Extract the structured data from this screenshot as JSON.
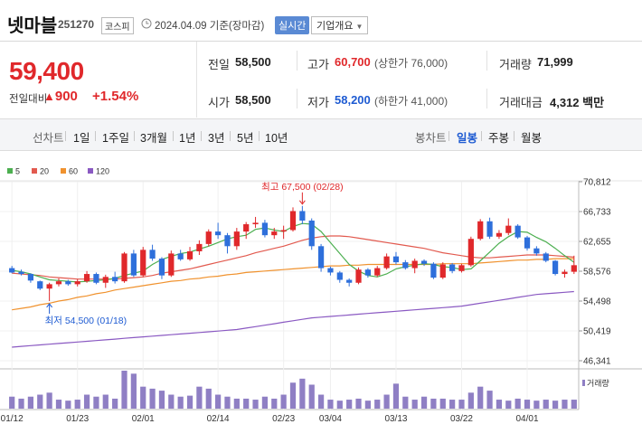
{
  "header": {
    "stock_name": "넷마블",
    "stock_code": "251270",
    "market": "코스피",
    "date_text": "2024.04.09 기준(장마감)",
    "realtime_label": "실시간",
    "company_info_label": "기업개요"
  },
  "quote": {
    "price": "59,400",
    "change_label": "전일대비",
    "change": "900",
    "change_pct": "+1.54%",
    "prev_close_label": "전일",
    "prev_close": "58,500",
    "open_label": "시가",
    "open": "58,500",
    "high_label": "고가",
    "high": "60,700",
    "upper_limit": "(상한가 76,000)",
    "low_label": "저가",
    "low": "58,200",
    "lower_limit": "(하한가 41,000)",
    "volume_label": "거래량",
    "volume": "71,999",
    "amount_label": "거래대금",
    "amount": "4,312 백만"
  },
  "toolbar": {
    "line_chart_label": "선차트",
    "ranges": [
      "1일",
      "1주일",
      "3개월",
      "1년",
      "3년",
      "5년",
      "10년"
    ],
    "candle_chart_label": "봉차트",
    "periods": [
      "일봉",
      "주봉",
      "월봉"
    ],
    "selected_period": "일봉"
  },
  "colors": {
    "up": "#e0282b",
    "down": "#2e6fdb",
    "ma5": "#4caf50",
    "ma20": "#e25a4f",
    "ma60": "#f0922e",
    "ma120": "#8a59c2",
    "volume": "#8f7fc4"
  },
  "chart_data": {
    "type": "candlestick",
    "legend": [
      "5",
      "20",
      "60",
      "120"
    ],
    "ylim": [
      46341,
      70812
    ],
    "y_ticks": [
      "70,812",
      "66,733",
      "62,655",
      "58,576",
      "54,498",
      "50,419",
      "46,341"
    ],
    "x_tick_labels": [
      {
        "label": "01/12",
        "index": 0
      },
      {
        "label": "01/23",
        "index": 7
      },
      {
        "label": "02/01",
        "index": 14
      },
      {
        "label": "02/14",
        "index": 22
      },
      {
        "label": "02/23",
        "index": 29
      },
      {
        "label": "03/04",
        "index": 34
      },
      {
        "label": "03/13",
        "index": 41
      },
      {
        "label": "03/22",
        "index": 48
      },
      {
        "label": "04/01",
        "index": 55
      }
    ],
    "high_annotation": "최고 67,500 (02/28)",
    "high_index": 31,
    "high_value": 67500,
    "low_annotation": "최저 54,500 (01/18)",
    "low_index": 4,
    "low_value": 54500,
    "volume_label": "거래량",
    "candles": [
      [
        59000,
        58400,
        59300,
        58300
      ],
      [
        58500,
        58200,
        58800,
        58000
      ],
      [
        58200,
        57300,
        58300,
        57000
      ],
      [
        57200,
        56200,
        57300,
        56000
      ],
      [
        56200,
        56800,
        57000,
        54500
      ],
      [
        56800,
        57200,
        57600,
        56500
      ],
      [
        57200,
        56800,
        57400,
        56600
      ],
      [
        56800,
        57200,
        57500,
        56500
      ],
      [
        57200,
        58200,
        58600,
        57000
      ],
      [
        58200,
        57000,
        58400,
        56800
      ],
      [
        57000,
        57800,
        58100,
        56300
      ],
      [
        57800,
        57200,
        58500,
        56900
      ],
      [
        57200,
        61000,
        61200,
        57000
      ],
      [
        61000,
        58000,
        61500,
        57800
      ],
      [
        58000,
        61500,
        61900,
        57800
      ],
      [
        61500,
        60300,
        62200,
        60000
      ],
      [
        60300,
        58000,
        60500,
        57500
      ],
      [
        58000,
        61000,
        61400,
        57800
      ],
      [
        61000,
        60200,
        61500,
        60000
      ],
      [
        60200,
        61300,
        61900,
        60000
      ],
      [
        61300,
        62300,
        62800,
        60800
      ],
      [
        62300,
        64000,
        64300,
        62000
      ],
      [
        64000,
        63500,
        65200,
        63000
      ],
      [
        63500,
        62000,
        63800,
        61000
      ],
      [
        62000,
        64000,
        64500,
        61500
      ],
      [
        64000,
        65000,
        65300,
        63000
      ],
      [
        65000,
        65200,
        66000,
        64500
      ],
      [
        65200,
        63500,
        65600,
        63200
      ],
      [
        63500,
        64000,
        64500,
        63000
      ],
      [
        64000,
        64200,
        64800,
        63000
      ],
      [
        64200,
        66800,
        67300,
        64000
      ],
      [
        66800,
        65500,
        67500,
        65000
      ],
      [
        65500,
        62000,
        65800,
        61500
      ],
      [
        62000,
        59000,
        62300,
        58500
      ],
      [
        59000,
        58400,
        59200,
        58000
      ],
      [
        58400,
        57400,
        58600,
        57000
      ],
      [
        57400,
        57000,
        57600,
        56500
      ],
      [
        57000,
        58800,
        59100,
        56800
      ],
      [
        58800,
        58000,
        59000,
        57700
      ],
      [
        58000,
        59000,
        59300,
        57800
      ],
      [
        59000,
        60600,
        61000,
        58800
      ],
      [
        60600,
        59800,
        61200,
        59500
      ],
      [
        59800,
        59000,
        60100,
        58800
      ],
      [
        59000,
        60000,
        60300,
        58300
      ],
      [
        60000,
        59600,
        60200,
        59300
      ],
      [
        59600,
        57700,
        59800,
        57500
      ],
      [
        57700,
        59500,
        59800,
        57500
      ],
      [
        59500,
        58600,
        59700,
        58300
      ],
      [
        58600,
        59400,
        59600,
        58400
      ],
      [
        59400,
        63000,
        63300,
        59200
      ],
      [
        63000,
        65400,
        65700,
        62800
      ],
      [
        65400,
        63300,
        65900,
        63000
      ],
      [
        63300,
        63800,
        64200,
        63000
      ],
      [
        63800,
        64800,
        65800,
        63500
      ],
      [
        64800,
        63200,
        65000,
        63000
      ],
      [
        63200,
        61700,
        63400,
        61400
      ],
      [
        61700,
        61000,
        62000,
        60700
      ],
      [
        61000,
        60000,
        61200,
        59800
      ],
      [
        60000,
        58200,
        60100,
        58000
      ],
      [
        58200,
        58500,
        58800,
        57700
      ],
      [
        58500,
        59400,
        60700,
        58200
      ]
    ],
    "ma5": [
      58700,
      58500,
      58200,
      57800,
      57400,
      57300,
      57200,
      57100,
      57200,
      57300,
      57400,
      57600,
      58000,
      58300,
      58600,
      59500,
      60200,
      60600,
      61000,
      61200,
      61600,
      62000,
      62500,
      63000,
      63300,
      63500,
      64300,
      64500,
      64200,
      64000,
      64700,
      65100,
      65000,
      64000,
      62500,
      61000,
      59500,
      58600,
      58000,
      57800,
      58200,
      58900,
      59200,
      59400,
      59600,
      59500,
      59200,
      59100,
      58800,
      58900,
      60000,
      61200,
      62400,
      63300,
      64000,
      63900,
      63200,
      62600,
      61700,
      60700,
      59800
    ],
    "ma20": [
      58300,
      58200,
      58100,
      58000,
      57800,
      57700,
      57600,
      57500,
      57500,
      57500,
      57500,
      57500,
      57600,
      57700,
      57800,
      58000,
      58300,
      58500,
      58700,
      58900,
      59200,
      59500,
      59800,
      60100,
      60400,
      60700,
      61100,
      61400,
      61700,
      62000,
      62400,
      62800,
      63100,
      63300,
      63400,
      63400,
      63300,
      63100,
      62900,
      62700,
      62500,
      62300,
      62100,
      61900,
      61700,
      61400,
      61100,
      60900,
      60700,
      60500,
      60400,
      60400,
      60500,
      60600,
      60700,
      60800,
      60800,
      60800,
      60700,
      60600,
      60500
    ],
    "ma60": [
      53300,
      53500,
      53700,
      54000,
      54200,
      54500,
      54700,
      55000,
      55200,
      55500,
      55700,
      56000,
      56200,
      56400,
      56600,
      56800,
      57000,
      57200,
      57300,
      57500,
      57600,
      57800,
      57900,
      58100,
      58200,
      58400,
      58500,
      58600,
      58700,
      58800,
      58900,
      59000,
      59100,
      59200,
      59300,
      59300,
      59400,
      59400,
      59500,
      59500,
      59500,
      59500,
      59500,
      59500,
      59500,
      59500,
      59600,
      59600,
      59600,
      59600,
      59700,
      59800,
      59900,
      60000,
      60100,
      60100,
      60200,
      60200,
      60300,
      60300,
      60300
    ],
    "ma120": [
      48200,
      48300,
      48400,
      48500,
      48600,
      48700,
      48800,
      48900,
      49000,
      49100,
      49200,
      49300,
      49400,
      49500,
      49600,
      49700,
      49800,
      49900,
      50000,
      50100,
      50200,
      50300,
      50400,
      50500,
      50600,
      50800,
      51000,
      51200,
      51400,
      51600,
      51800,
      52000,
      52200,
      52300,
      52400,
      52500,
      52600,
      52700,
      52800,
      52900,
      53000,
      53100,
      53200,
      53300,
      53400,
      53500,
      53600,
      53700,
      53800,
      54000,
      54200,
      54400,
      54600,
      54800,
      55000,
      55200,
      55400,
      55500,
      55600,
      55700,
      55800
    ],
    "volume": [
      12,
      10,
      12,
      14,
      16,
      9,
      8,
      9,
      14,
      12,
      14,
      10,
      38,
      35,
      22,
      20,
      18,
      14,
      12,
      13,
      22,
      20,
      14,
      12,
      10,
      10,
      9,
      12,
      10,
      14,
      26,
      30,
      24,
      14,
      9,
      8,
      9,
      10,
      8,
      9,
      14,
      25,
      12,
      9,
      12,
      10,
      10,
      9,
      9,
      16,
      22,
      18,
      9,
      8,
      10,
      9,
      8,
      9,
      8,
      9,
      9
    ]
  }
}
